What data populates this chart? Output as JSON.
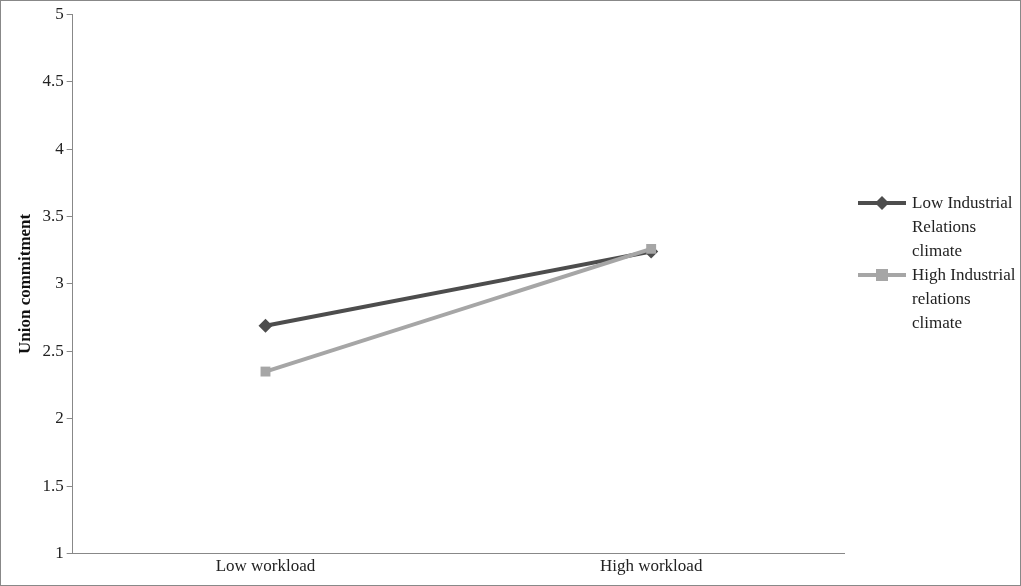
{
  "chart_data": {
    "type": "line",
    "ylabel": "Union commitment",
    "categories": [
      "Low workload",
      "High workload"
    ],
    "series": [
      {
        "name": "Low Industrial Relations climate",
        "color": "#4d4d4d",
        "marker": "diamond",
        "values": [
          2.69,
          3.24
        ]
      },
      {
        "name": "High Industrial relations climate",
        "color": "#a6a6a6",
        "marker": "square",
        "values": [
          2.35,
          3.26
        ]
      }
    ],
    "ylim": [
      1,
      5
    ],
    "yticks": [
      1,
      1.5,
      2,
      2.5,
      3,
      3.5,
      4,
      4.5,
      5
    ],
    "grid": false,
    "legend": "right",
    "line_style": "solid"
  }
}
